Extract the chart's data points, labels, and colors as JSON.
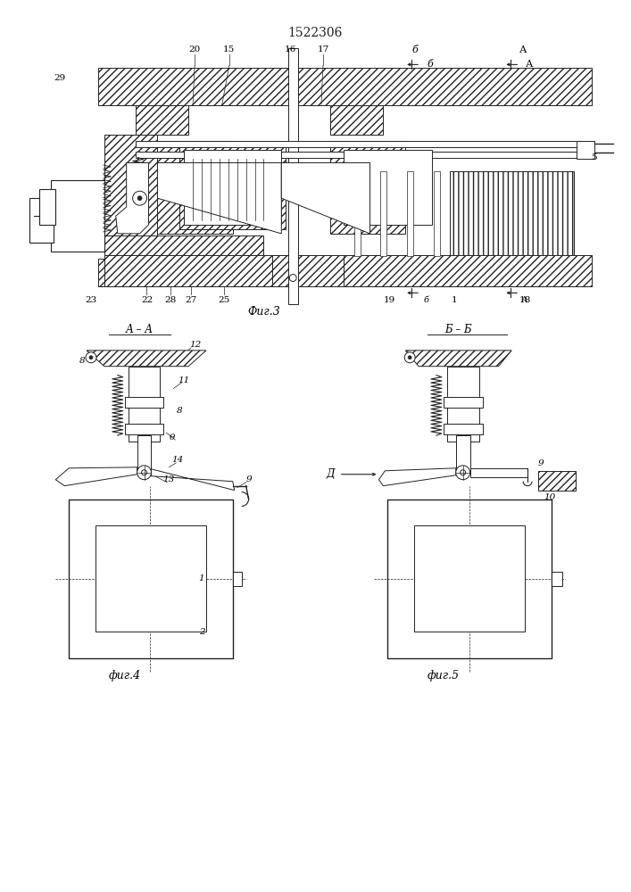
{
  "title": "1522306",
  "title_fontsize": 10,
  "bg_color": "#ffffff",
  "line_color": "#222222",
  "fig3_label": "Фиг.3",
  "fig4_label": "фиг.4",
  "fig5_label": "фиг.5"
}
